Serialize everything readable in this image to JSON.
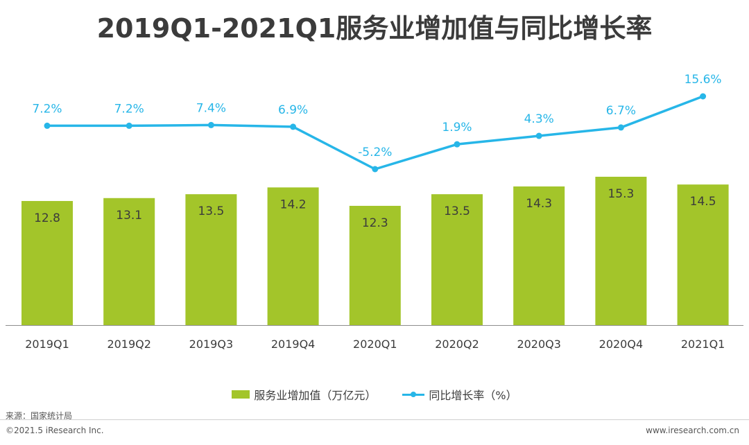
{
  "title": "2019Q1-2021Q1服务业增加值与同比增长率",
  "colors": {
    "bar": "#a3c52a",
    "line": "#27b6e8",
    "axis": "#8c8c8c",
    "text": "#3b3b3b"
  },
  "legend": {
    "bar_label": "服务业增加值（万亿元）",
    "line_label": "同比增长率（%）"
  },
  "footer": {
    "source": "来源：国家统计局",
    "copyright": "©2021.5 iResearch Inc.",
    "website": "www.iresearch.com.cn"
  },
  "chart_data": {
    "type": "bar+line",
    "title": "2019Q1-2021Q1服务业增加值与同比增长率",
    "categories": [
      "2019Q1",
      "2019Q2",
      "2019Q3",
      "2019Q4",
      "2020Q1",
      "2020Q2",
      "2020Q3",
      "2020Q4",
      "2021Q1"
    ],
    "series": [
      {
        "name": "服务业增加值（万亿元）",
        "type": "bar",
        "values": [
          12.8,
          13.1,
          13.5,
          14.2,
          12.3,
          13.5,
          14.3,
          15.3,
          14.5
        ],
        "labels": [
          "12.8",
          "13.1",
          "13.5",
          "14.2",
          "12.3",
          "13.5",
          "14.3",
          "15.3",
          "14.5"
        ]
      },
      {
        "name": "同比增长率（%）",
        "type": "line",
        "values": [
          7.2,
          7.2,
          7.4,
          6.9,
          -5.2,
          1.9,
          4.3,
          6.7,
          15.6
        ],
        "labels": [
          "7.2%",
          "7.2%",
          "7.4%",
          "6.9%",
          "-5.2%",
          "1.9%",
          "4.3%",
          "6.7%",
          "15.6%"
        ]
      }
    ],
    "bar_ylim": [
      0,
      15.3
    ],
    "line_ylim": [
      -5.2,
      15.6
    ],
    "grid": false
  }
}
